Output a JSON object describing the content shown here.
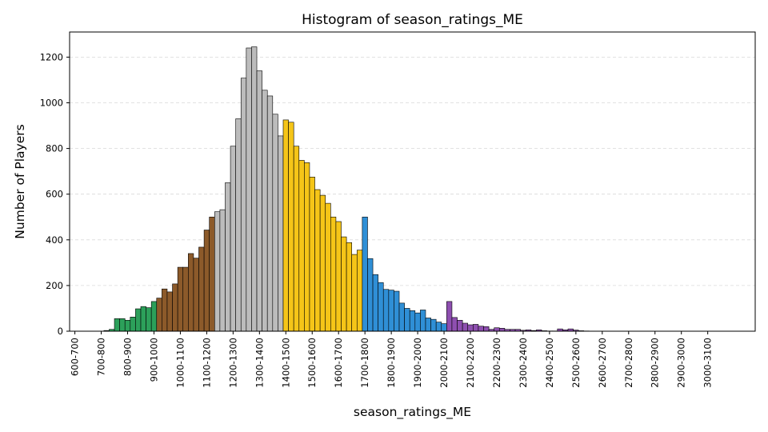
{
  "chart_data": {
    "type": "bar",
    "title": "Histogram of season_ratings_ME",
    "xlabel": "season_ratings_ME",
    "ylabel": "Number of Players",
    "ylim": [
      0,
      1310
    ],
    "xlim": [
      530,
      3130
    ],
    "yticks": [
      0,
      200,
      400,
      600,
      800,
      1000,
      1200
    ],
    "xtick_labels": [
      "600-700",
      "700-800",
      "800-900",
      "900-1000",
      "1000-1100",
      "1100-1200",
      "1200-1300",
      "1300-1400",
      "1400-1500",
      "1500-1600",
      "1600-1700",
      "1700-1800",
      "1800-1900",
      "1900-2000",
      "2000-2100",
      "2100-2200",
      "2200-2300",
      "2300-2400",
      "2400-2500",
      "2500-2600",
      "2600-2700",
      "2700-2800",
      "2800-2900",
      "2900-3000",
      "3000-3100"
    ],
    "bin_width": 20,
    "grid": "y dashed",
    "colors": {
      "green": "#2ca05a",
      "brown": "#8c5a2a",
      "gray": "#bcbcbc",
      "yellow": "#f5c518",
      "blue": "#2f8fd6",
      "purple": "#8e4fb0"
    },
    "bins": [
      {
        "x": 670,
        "y": 3,
        "c": "green"
      },
      {
        "x": 690,
        "y": 8,
        "c": "green"
      },
      {
        "x": 710,
        "y": 55,
        "c": "green"
      },
      {
        "x": 730,
        "y": 55,
        "c": "green"
      },
      {
        "x": 750,
        "y": 48,
        "c": "green"
      },
      {
        "x": 770,
        "y": 62,
        "c": "green"
      },
      {
        "x": 790,
        "y": 98,
        "c": "green"
      },
      {
        "x": 810,
        "y": 108,
        "c": "green"
      },
      {
        "x": 830,
        "y": 103,
        "c": "green"
      },
      {
        "x": 850,
        "y": 130,
        "c": "green"
      },
      {
        "x": 870,
        "y": 145,
        "c": "brown"
      },
      {
        "x": 890,
        "y": 185,
        "c": "brown"
      },
      {
        "x": 910,
        "y": 172,
        "c": "brown"
      },
      {
        "x": 930,
        "y": 207,
        "c": "brown"
      },
      {
        "x": 950,
        "y": 280,
        "c": "brown"
      },
      {
        "x": 970,
        "y": 280,
        "c": "brown"
      },
      {
        "x": 990,
        "y": 340,
        "c": "brown"
      },
      {
        "x": 1010,
        "y": 320,
        "c": "brown"
      },
      {
        "x": 1030,
        "y": 368,
        "c": "brown"
      },
      {
        "x": 1050,
        "y": 443,
        "c": "brown"
      },
      {
        "x": 1070,
        "y": 500,
        "c": "brown"
      },
      {
        "x": 1090,
        "y": 523,
        "c": "gray"
      },
      {
        "x": 1110,
        "y": 532,
        "c": "gray"
      },
      {
        "x": 1130,
        "y": 650,
        "c": "gray"
      },
      {
        "x": 1150,
        "y": 810,
        "c": "gray"
      },
      {
        "x": 1170,
        "y": 930,
        "c": "gray"
      },
      {
        "x": 1190,
        "y": 1108,
        "c": "gray"
      },
      {
        "x": 1210,
        "y": 1240,
        "c": "gray"
      },
      {
        "x": 1230,
        "y": 1245,
        "c": "gray"
      },
      {
        "x": 1250,
        "y": 1140,
        "c": "gray"
      },
      {
        "x": 1270,
        "y": 1055,
        "c": "gray"
      },
      {
        "x": 1290,
        "y": 1030,
        "c": "gray"
      },
      {
        "x": 1310,
        "y": 950,
        "c": "gray"
      },
      {
        "x": 1330,
        "y": 855,
        "c": "gray"
      },
      {
        "x": 1350,
        "y": 925,
        "c": "yellow"
      },
      {
        "x": 1370,
        "y": 915,
        "c": "yellow"
      },
      {
        "x": 1390,
        "y": 810,
        "c": "yellow"
      },
      {
        "x": 1410,
        "y": 748,
        "c": "yellow"
      },
      {
        "x": 1430,
        "y": 738,
        "c": "yellow"
      },
      {
        "x": 1450,
        "y": 675,
        "c": "yellow"
      },
      {
        "x": 1470,
        "y": 620,
        "c": "yellow"
      },
      {
        "x": 1490,
        "y": 595,
        "c": "yellow"
      },
      {
        "x": 1510,
        "y": 560,
        "c": "yellow"
      },
      {
        "x": 1530,
        "y": 500,
        "c": "yellow"
      },
      {
        "x": 1550,
        "y": 480,
        "c": "yellow"
      },
      {
        "x": 1570,
        "y": 413,
        "c": "yellow"
      },
      {
        "x": 1590,
        "y": 388,
        "c": "yellow"
      },
      {
        "x": 1610,
        "y": 336,
        "c": "yellow"
      },
      {
        "x": 1630,
        "y": 355,
        "c": "yellow"
      },
      {
        "x": 1650,
        "y": 500,
        "c": "blue"
      },
      {
        "x": 1670,
        "y": 318,
        "c": "blue"
      },
      {
        "x": 1690,
        "y": 248,
        "c": "blue"
      },
      {
        "x": 1710,
        "y": 213,
        "c": "blue"
      },
      {
        "x": 1730,
        "y": 183,
        "c": "blue"
      },
      {
        "x": 1750,
        "y": 180,
        "c": "blue"
      },
      {
        "x": 1770,
        "y": 175,
        "c": "blue"
      },
      {
        "x": 1790,
        "y": 123,
        "c": "blue"
      },
      {
        "x": 1810,
        "y": 100,
        "c": "blue"
      },
      {
        "x": 1830,
        "y": 90,
        "c": "blue"
      },
      {
        "x": 1850,
        "y": 80,
        "c": "blue"
      },
      {
        "x": 1870,
        "y": 93,
        "c": "blue"
      },
      {
        "x": 1890,
        "y": 58,
        "c": "blue"
      },
      {
        "x": 1910,
        "y": 52,
        "c": "blue"
      },
      {
        "x": 1930,
        "y": 40,
        "c": "blue"
      },
      {
        "x": 1950,
        "y": 33,
        "c": "blue"
      },
      {
        "x": 1970,
        "y": 130,
        "c": "purple"
      },
      {
        "x": 1990,
        "y": 60,
        "c": "purple"
      },
      {
        "x": 2010,
        "y": 48,
        "c": "purple"
      },
      {
        "x": 2030,
        "y": 35,
        "c": "purple"
      },
      {
        "x": 2050,
        "y": 28,
        "c": "purple"
      },
      {
        "x": 2070,
        "y": 30,
        "c": "purple"
      },
      {
        "x": 2090,
        "y": 22,
        "c": "purple"
      },
      {
        "x": 2110,
        "y": 20,
        "c": "purple"
      },
      {
        "x": 2130,
        "y": 8,
        "c": "purple"
      },
      {
        "x": 2150,
        "y": 15,
        "c": "purple"
      },
      {
        "x": 2170,
        "y": 13,
        "c": "purple"
      },
      {
        "x": 2190,
        "y": 8,
        "c": "purple"
      },
      {
        "x": 2210,
        "y": 8,
        "c": "purple"
      },
      {
        "x": 2230,
        "y": 8,
        "c": "purple"
      },
      {
        "x": 2250,
        "y": 4,
        "c": "purple"
      },
      {
        "x": 2270,
        "y": 6,
        "c": "purple"
      },
      {
        "x": 2290,
        "y": 3,
        "c": "purple"
      },
      {
        "x": 2310,
        "y": 6,
        "c": "purple"
      },
      {
        "x": 2330,
        "y": 2,
        "c": "purple"
      },
      {
        "x": 2350,
        "y": 1,
        "c": "purple"
      },
      {
        "x": 2370,
        "y": 1,
        "c": "purple"
      },
      {
        "x": 2390,
        "y": 10,
        "c": "purple"
      },
      {
        "x": 2410,
        "y": 6,
        "c": "purple"
      },
      {
        "x": 2430,
        "y": 10,
        "c": "purple"
      },
      {
        "x": 2450,
        "y": 5,
        "c": "purple"
      },
      {
        "x": 2470,
        "y": 2,
        "c": "purple"
      },
      {
        "x": 2490,
        "y": 1,
        "c": "purple"
      }
    ]
  }
}
